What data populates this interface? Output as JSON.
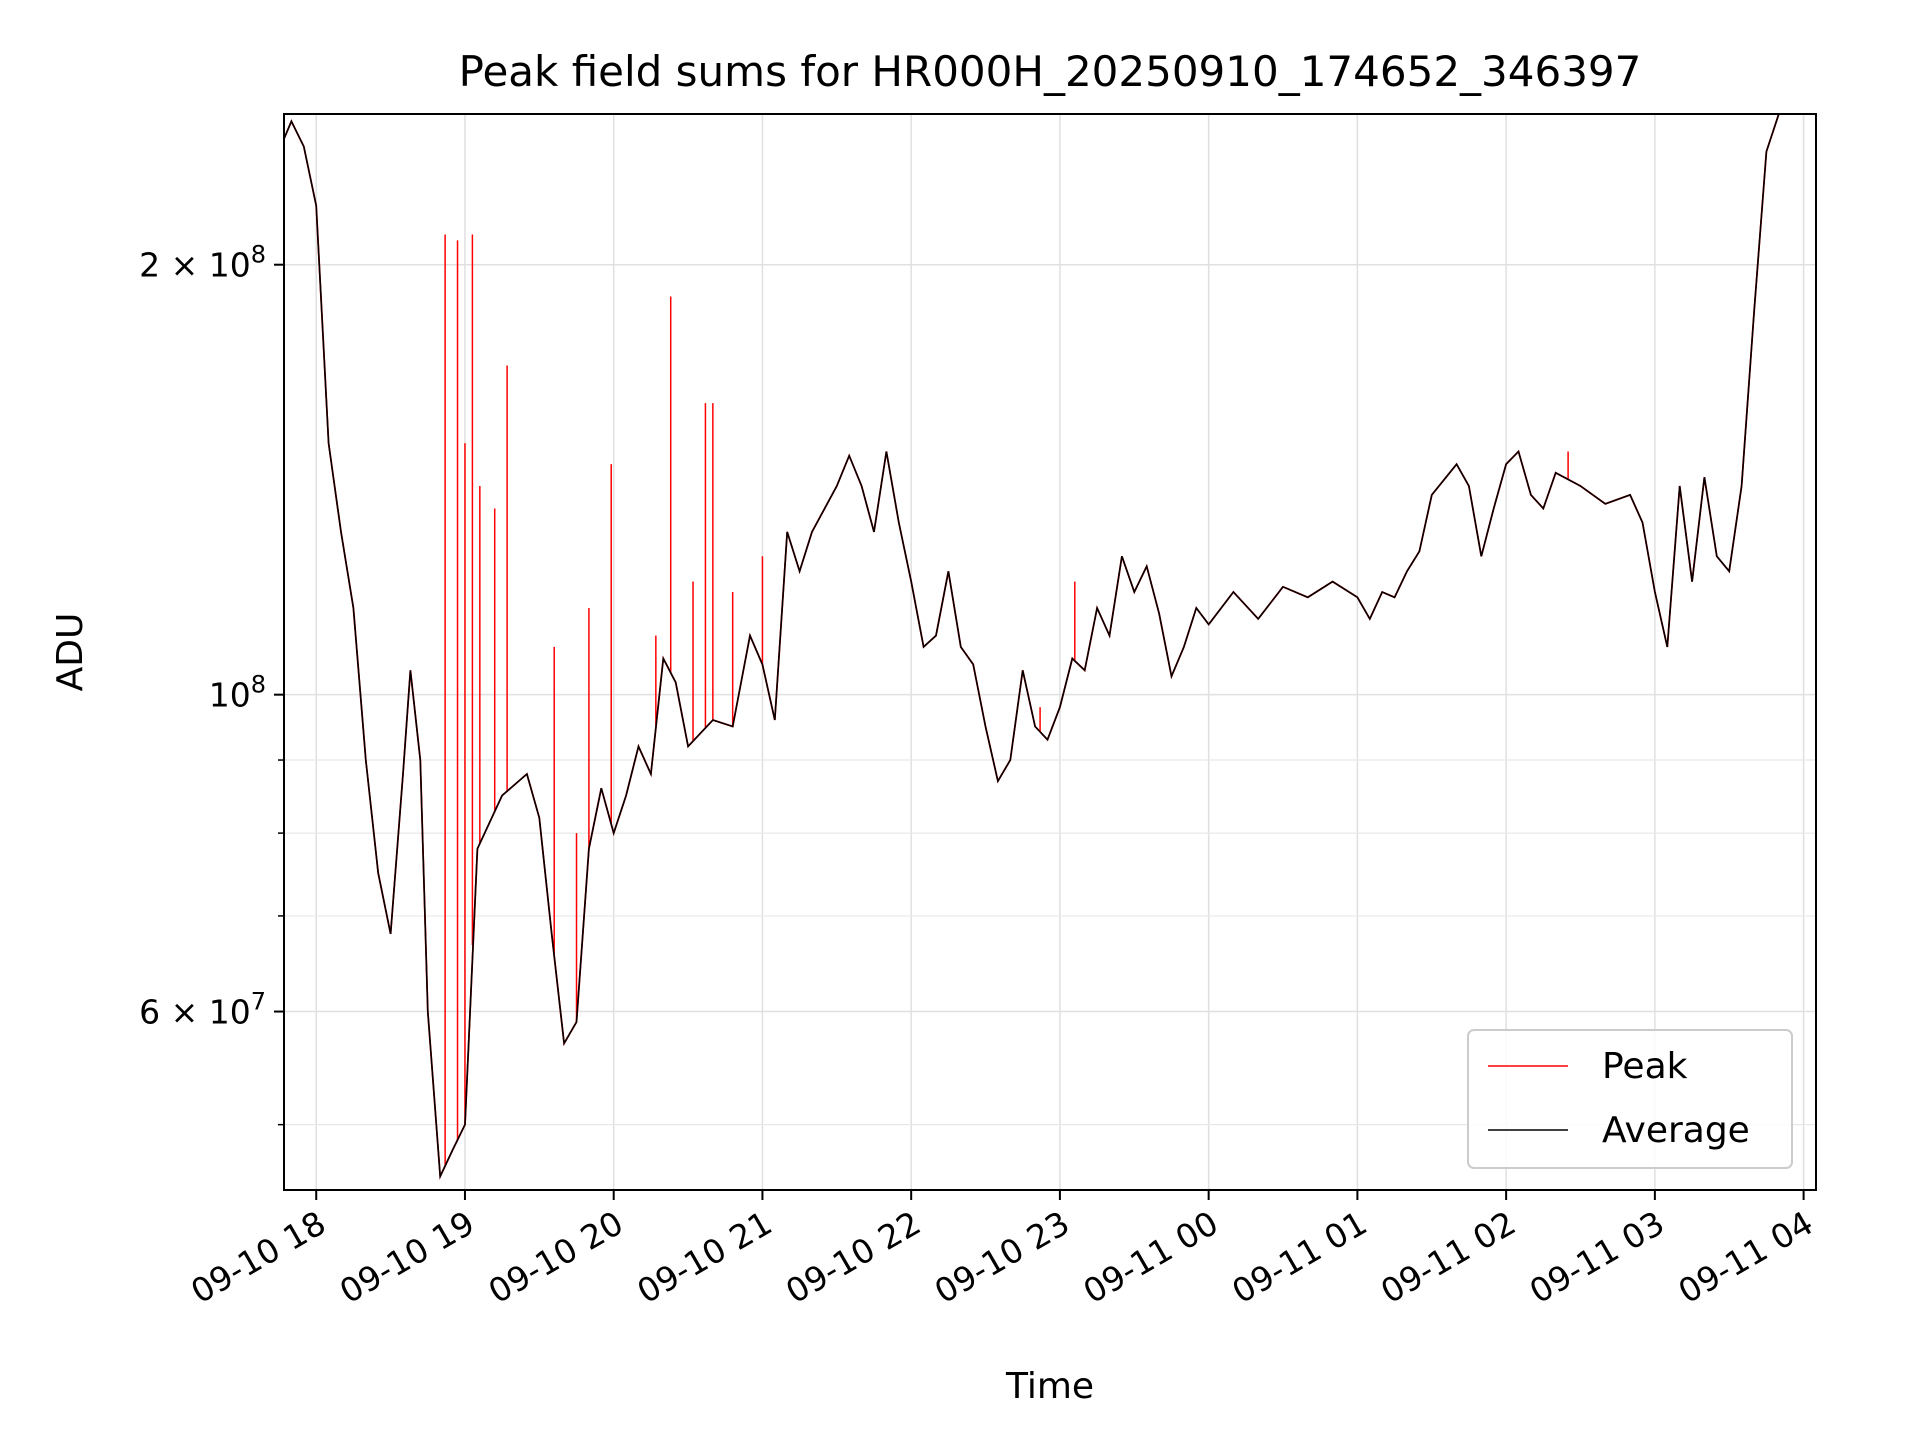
{
  "chart_data": {
    "type": "line",
    "title": "Peak field sums for HR000H_20250910_174652_346397",
    "xlabel": "Time",
    "ylabel": "ADU",
    "y_scale": "log",
    "xlim": [
      "2025-09-10 17:47",
      "2025-09-11 04:05"
    ],
    "ylim": [
      45000000,
      255000000
    ],
    "grid": true,
    "legend_position": "lower-right",
    "x_ticks": [
      "09-10 18",
      "09-10 19",
      "09-10 20",
      "09-10 21",
      "09-10 22",
      "09-10 23",
      "09-11 00",
      "09-11 01",
      "09-11 02",
      "09-11 03",
      "09-11 04"
    ],
    "y_ticks_labeled": [
      {
        "value": 60000000,
        "label": "6 × 10^7",
        "mantissa": "6",
        "exponent": "7"
      },
      {
        "value": 100000000,
        "label": "10^8",
        "mantissa": "",
        "exponent": "8"
      },
      {
        "value": 200000000,
        "label": "2 × 10^8",
        "mantissa": "2",
        "exponent": "8"
      }
    ],
    "y_minor_ticks": [
      50000000,
      70000000,
      80000000,
      90000000
    ],
    "series": [
      {
        "name": "Average",
        "color": "#000000",
        "points": [
          [
            "2025-09-10 17:47",
            245000000
          ],
          [
            "2025-09-10 17:50",
            252000000
          ],
          [
            "2025-09-10 17:55",
            242000000
          ],
          [
            "2025-09-10 18:00",
            220000000
          ],
          [
            "2025-09-10 18:05",
            150000000
          ],
          [
            "2025-09-10 18:10",
            130000000
          ],
          [
            "2025-09-10 18:15",
            115000000
          ],
          [
            "2025-09-10 18:20",
            90000000
          ],
          [
            "2025-09-10 18:25",
            75000000
          ],
          [
            "2025-09-10 18:30",
            68000000
          ],
          [
            "2025-09-10 18:35",
            88000000
          ],
          [
            "2025-09-10 18:38",
            104000000
          ],
          [
            "2025-09-10 18:42",
            90000000
          ],
          [
            "2025-09-10 18:45",
            60000000
          ],
          [
            "2025-09-10 18:50",
            46000000
          ],
          [
            "2025-09-10 18:55",
            48000000
          ],
          [
            "2025-09-10 19:00",
            50000000
          ],
          [
            "2025-09-10 19:05",
            78000000
          ],
          [
            "2025-09-10 19:15",
            85000000
          ],
          [
            "2025-09-10 19:25",
            88000000
          ],
          [
            "2025-09-10 19:30",
            82000000
          ],
          [
            "2025-09-10 19:35",
            68000000
          ],
          [
            "2025-09-10 19:40",
            57000000
          ],
          [
            "2025-09-10 19:45",
            59000000
          ],
          [
            "2025-09-10 19:50",
            78000000
          ],
          [
            "2025-09-10 19:55",
            86000000
          ],
          [
            "2025-09-10 20:00",
            80000000
          ],
          [
            "2025-09-10 20:05",
            85000000
          ],
          [
            "2025-09-10 20:10",
            92000000
          ],
          [
            "2025-09-10 20:15",
            88000000
          ],
          [
            "2025-09-10 20:20",
            106000000
          ],
          [
            "2025-09-10 20:25",
            102000000
          ],
          [
            "2025-09-10 20:30",
            92000000
          ],
          [
            "2025-09-10 20:40",
            96000000
          ],
          [
            "2025-09-10 20:48",
            95000000
          ],
          [
            "2025-09-10 20:55",
            110000000
          ],
          [
            "2025-09-10 21:00",
            105000000
          ],
          [
            "2025-09-10 21:05",
            96000000
          ],
          [
            "2025-09-10 21:10",
            130000000
          ],
          [
            "2025-09-10 21:15",
            122000000
          ],
          [
            "2025-09-10 21:20",
            130000000
          ],
          [
            "2025-09-10 21:30",
            140000000
          ],
          [
            "2025-09-10 21:35",
            147000000
          ],
          [
            "2025-09-10 21:40",
            140000000
          ],
          [
            "2025-09-10 21:45",
            130000000
          ],
          [
            "2025-09-10 21:50",
            148000000
          ],
          [
            "2025-09-10 21:55",
            132000000
          ],
          [
            "2025-09-10 22:00",
            120000000
          ],
          [
            "2025-09-10 22:05",
            108000000
          ],
          [
            "2025-09-10 22:10",
            110000000
          ],
          [
            "2025-09-10 22:15",
            122000000
          ],
          [
            "2025-09-10 22:20",
            108000000
          ],
          [
            "2025-09-10 22:25",
            105000000
          ],
          [
            "2025-09-10 22:30",
            95000000
          ],
          [
            "2025-09-10 22:35",
            87000000
          ],
          [
            "2025-09-10 22:40",
            90000000
          ],
          [
            "2025-09-10 22:45",
            104000000
          ],
          [
            "2025-09-10 22:50",
            95000000
          ],
          [
            "2025-09-10 22:55",
            93000000
          ],
          [
            "2025-09-10 23:00",
            98000000
          ],
          [
            "2025-09-10 23:05",
            106000000
          ],
          [
            "2025-09-10 23:10",
            104000000
          ],
          [
            "2025-09-10 23:15",
            115000000
          ],
          [
            "2025-09-10 23:20",
            110000000
          ],
          [
            "2025-09-10 23:25",
            125000000
          ],
          [
            "2025-09-10 23:30",
            118000000
          ],
          [
            "2025-09-10 23:35",
            123000000
          ],
          [
            "2025-09-10 23:40",
            114000000
          ],
          [
            "2025-09-10 23:45",
            103000000
          ],
          [
            "2025-09-10 23:50",
            108000000
          ],
          [
            "2025-09-10 23:55",
            115000000
          ],
          [
            "2025-09-11 00:00",
            112000000
          ],
          [
            "2025-09-11 00:10",
            118000000
          ],
          [
            "2025-09-11 00:20",
            113000000
          ],
          [
            "2025-09-11 00:30",
            119000000
          ],
          [
            "2025-09-11 00:40",
            117000000
          ],
          [
            "2025-09-11 00:50",
            120000000
          ],
          [
            "2025-09-11 01:00",
            117000000
          ],
          [
            "2025-09-11 01:05",
            113000000
          ],
          [
            "2025-09-11 01:10",
            118000000
          ],
          [
            "2025-09-11 01:15",
            117000000
          ],
          [
            "2025-09-11 01:20",
            122000000
          ],
          [
            "2025-09-11 01:25",
            126000000
          ],
          [
            "2025-09-11 01:30",
            138000000
          ],
          [
            "2025-09-11 01:40",
            145000000
          ],
          [
            "2025-09-11 01:45",
            140000000
          ],
          [
            "2025-09-11 01:50",
            125000000
          ],
          [
            "2025-09-11 01:55",
            135000000
          ],
          [
            "2025-09-11 02:00",
            145000000
          ],
          [
            "2025-09-11 02:05",
            148000000
          ],
          [
            "2025-09-11 02:10",
            138000000
          ],
          [
            "2025-09-11 02:15",
            135000000
          ],
          [
            "2025-09-11 02:20",
            143000000
          ],
          [
            "2025-09-11 02:30",
            140000000
          ],
          [
            "2025-09-11 02:40",
            136000000
          ],
          [
            "2025-09-11 02:50",
            138000000
          ],
          [
            "2025-09-11 02:55",
            132000000
          ],
          [
            "2025-09-11 03:00",
            118000000
          ],
          [
            "2025-09-11 03:05",
            108000000
          ],
          [
            "2025-09-11 03:10",
            140000000
          ],
          [
            "2025-09-11 03:15",
            120000000
          ],
          [
            "2025-09-11 03:20",
            142000000
          ],
          [
            "2025-09-11 03:25",
            125000000
          ],
          [
            "2025-09-11 03:30",
            122000000
          ],
          [
            "2025-09-11 03:35",
            140000000
          ],
          [
            "2025-09-11 03:40",
            185000000
          ],
          [
            "2025-09-11 03:45",
            240000000
          ],
          [
            "2025-09-11 03:50",
            255000000
          ],
          [
            "2025-09-11 04:00",
            255000000
          ]
        ]
      },
      {
        "name": "Peak",
        "color": "#ff0000",
        "spikes": [
          [
            "2025-09-10 18:52",
            210000000
          ],
          [
            "2025-09-10 18:57",
            208000000
          ],
          [
            "2025-09-10 19:00",
            150000000
          ],
          [
            "2025-09-10 19:03",
            210000000
          ],
          [
            "2025-09-10 19:06",
            140000000
          ],
          [
            "2025-09-10 19:12",
            135000000
          ],
          [
            "2025-09-10 19:17",
            170000000
          ],
          [
            "2025-09-10 19:36",
            108000000
          ],
          [
            "2025-09-10 19:45",
            80000000
          ],
          [
            "2025-09-10 19:50",
            115000000
          ],
          [
            "2025-09-10 19:59",
            145000000
          ],
          [
            "2025-09-10 20:17",
            110000000
          ],
          [
            "2025-09-10 20:23",
            190000000
          ],
          [
            "2025-09-10 20:32",
            120000000
          ],
          [
            "2025-09-10 20:37",
            160000000
          ],
          [
            "2025-09-10 20:40",
            160000000
          ],
          [
            "2025-09-10 20:48",
            118000000
          ],
          [
            "2025-09-10 21:00",
            125000000
          ],
          [
            "2025-09-10 22:52",
            98000000
          ],
          [
            "2025-09-10 23:06",
            120000000
          ],
          [
            "2025-09-11 02:25",
            148000000
          ]
        ]
      }
    ]
  }
}
